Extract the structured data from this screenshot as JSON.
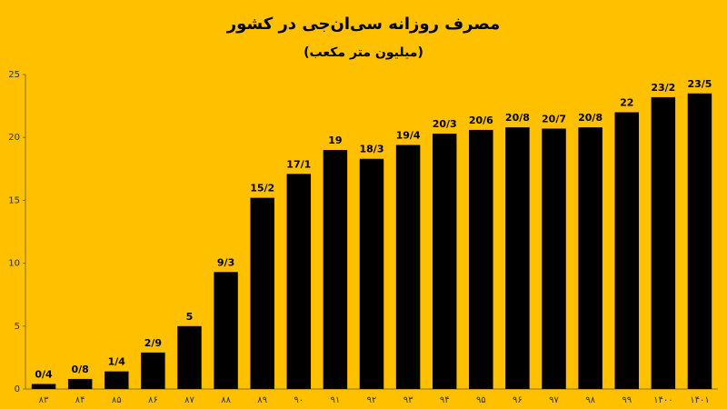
{
  "chart_data": {
    "type": "bar",
    "title": "مصرف روزانه سی‌ان‌جی در کشور",
    "subtitle": "(میلیون متر مکعب)",
    "categories": [
      "۸۳",
      "۸۴",
      "۸۵",
      "۸۶",
      "۸۷",
      "۸۸",
      "۸۹",
      "۹۰",
      "۹۱",
      "۹۲",
      "۹۳",
      "۹۴",
      "۹۵",
      "۹۶",
      "۹۷",
      "۹۸",
      "۹۹",
      "۱۴۰۰",
      "۱۴۰۱"
    ],
    "values": [
      0.4,
      0.8,
      1.4,
      2.9,
      5,
      9.3,
      15.2,
      17.1,
      19,
      18.3,
      19.4,
      20.3,
      20.6,
      20.8,
      20.7,
      20.8,
      22,
      23.2,
      23.5
    ],
    "value_labels": [
      "0/4",
      "0/8",
      "1/4",
      "2/9",
      "5",
      "9/3",
      "15/2",
      "17/1",
      "19",
      "18/3",
      "19/4",
      "20/3",
      "20/6",
      "20/8",
      "20/7",
      "20/8",
      "22",
      "23/2",
      "23/5"
    ],
    "color": "#000000",
    "ylim": [
      0,
      25
    ],
    "yticks": [
      0,
      5,
      10,
      15,
      20,
      25
    ],
    "grid": false
  }
}
